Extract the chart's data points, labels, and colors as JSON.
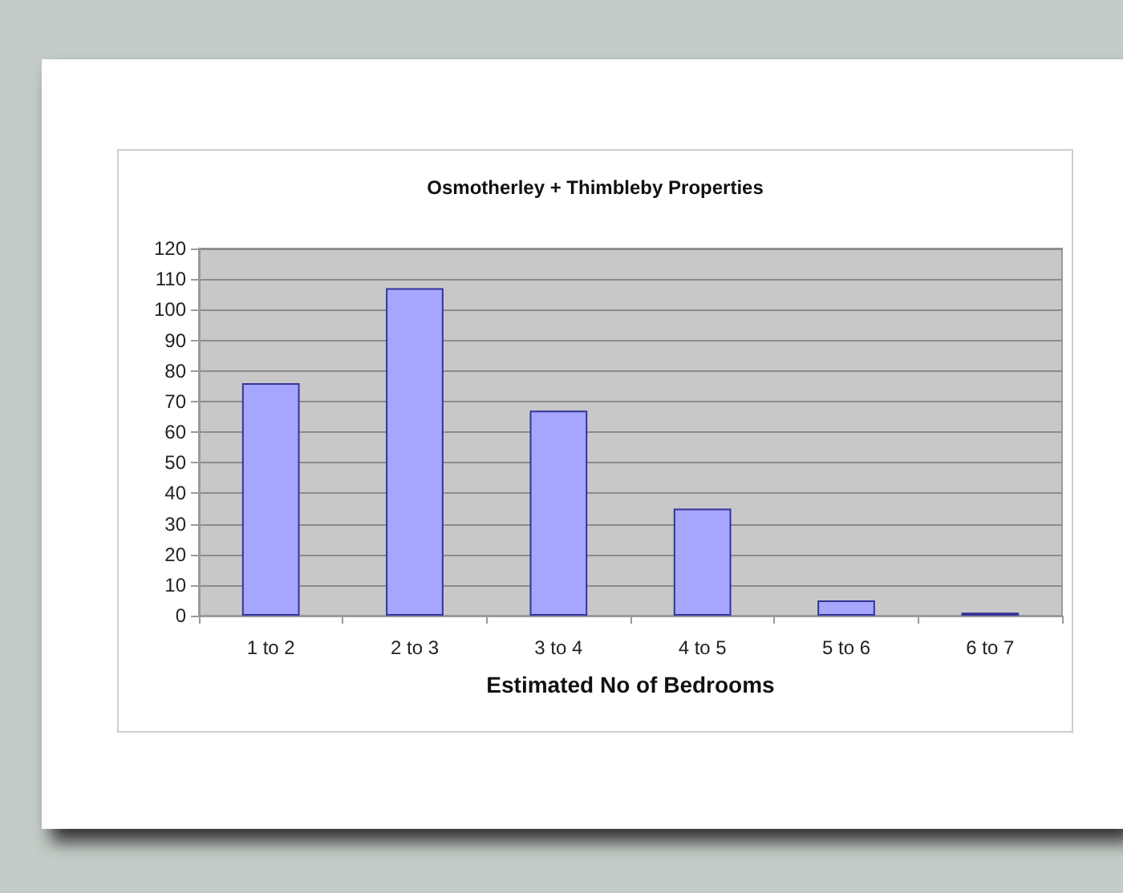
{
  "chart_data": {
    "type": "bar",
    "title": "Osmotherley + Thimbleby Properties",
    "xlabel": "Estimated No of Bedrooms",
    "categories": [
      "1 to 2",
      "2 to 3",
      "3 to 4",
      "4 to 5",
      "5 to 6",
      "6 to 7"
    ],
    "values": [
      76,
      107,
      67,
      35,
      5,
      1
    ],
    "color": "#a6a6ff",
    "ylim": [
      0,
      120
    ],
    "yticks": [
      0,
      10,
      20,
      30,
      40,
      50,
      60,
      70,
      80,
      90,
      100,
      110,
      120
    ],
    "grid": "y"
  }
}
